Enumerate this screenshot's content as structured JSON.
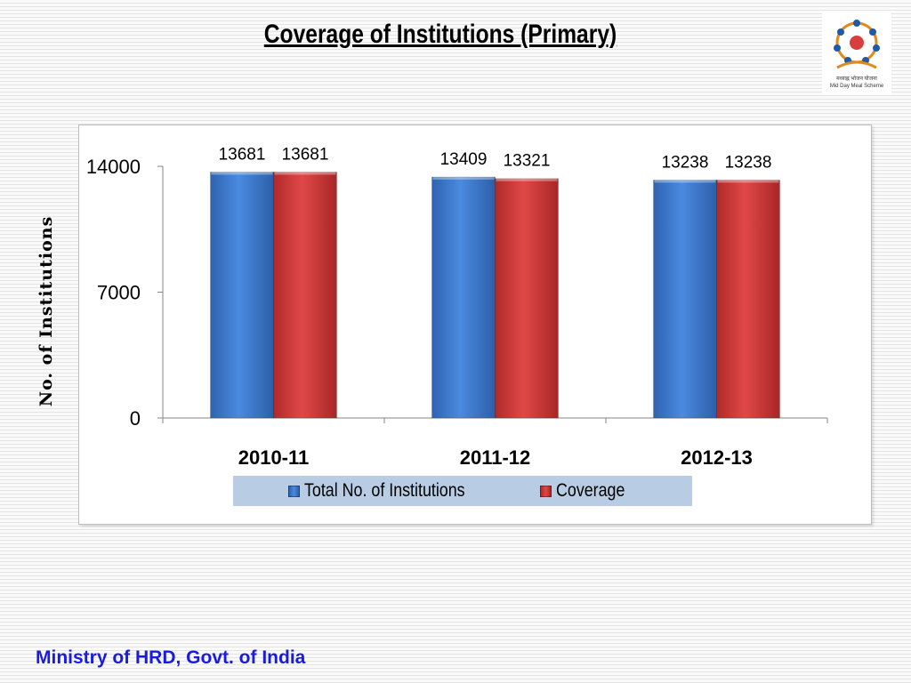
{
  "slide": {
    "title": "Coverage  of Institutions (Primary)",
    "footer": "Ministry of HRD, Govt. of India",
    "logo": {
      "icon": "mid-day-meal-logo",
      "text_hindi": "मध्याह्न भोजन योजना",
      "text_english": "Mid Day Meal Scheme"
    }
  },
  "colors": {
    "total": "#3f7fd6",
    "coverage": "#d83e3e",
    "legend_bg": "#b8cce4",
    "footer_text": "#1a1ae6"
  },
  "chart_data": {
    "type": "bar",
    "title": "",
    "xlabel": "",
    "ylabel": "No. of Institutions",
    "categories": [
      "2010-11",
      "2011-12",
      "2012-13"
    ],
    "series": [
      {
        "name": "Total No. of Institutions",
        "values": [
          13681,
          13409,
          13238
        ],
        "labels": [
          "13681",
          "13409",
          "13238"
        ]
      },
      {
        "name": "Coverage",
        "values": [
          13681,
          13321,
          13238
        ],
        "labels": [
          "13681",
          "13321",
          "13238"
        ]
      }
    ],
    "ylim": [
      0,
      14000
    ],
    "yticks": [
      0,
      7000,
      14000
    ],
    "ytick_labels": [
      "0",
      "7000",
      "14000"
    ],
    "grid": false,
    "legend_position": "bottom"
  }
}
